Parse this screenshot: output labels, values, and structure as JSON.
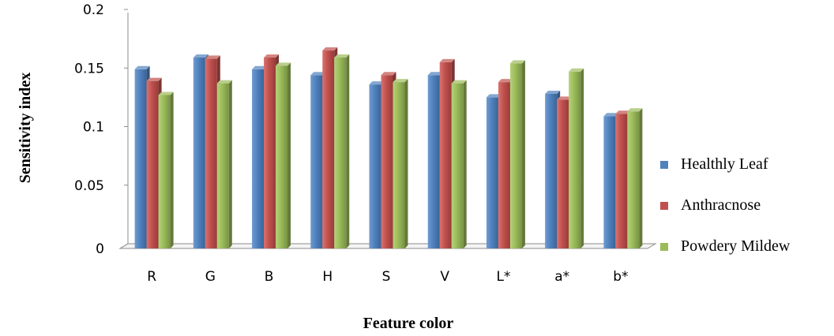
{
  "chart_data": {
    "type": "bar",
    "title": "",
    "xlabel": "Feature color",
    "ylabel": "Sensitivity index",
    "categories": [
      "R",
      "G",
      "B",
      "H",
      "S",
      "V",
      "L*",
      "a*",
      "b*"
    ],
    "series": [
      {
        "name": "Healthly Leaf",
        "color": "#4F81BD",
        "values": [
          0.153,
          0.163,
          0.153,
          0.148,
          0.14,
          0.148,
          0.129,
          0.132,
          0.113
        ]
      },
      {
        "name": "Anthracnose",
        "color": "#C0504D",
        "values": [
          0.143,
          0.162,
          0.163,
          0.169,
          0.148,
          0.159,
          0.142,
          0.127,
          0.115
        ]
      },
      {
        "name": "Powdery Mildew",
        "color": "#9BBB59",
        "values": [
          0.131,
          0.141,
          0.156,
          0.163,
          0.142,
          0.141,
          0.158,
          0.151,
          0.117
        ]
      }
    ],
    "ylim": [
      0,
      0.2
    ],
    "yticks": [
      {
        "value": 0,
        "label": "0"
      },
      {
        "value": 0.05,
        "label": "0.05"
      },
      {
        "value": 0.1,
        "label": "0.1"
      },
      {
        "value": 0.15,
        "label": "0.15"
      },
      {
        "value": 0.2,
        "label": "0.2"
      }
    ],
    "grid": false,
    "legend_position": "right",
    "style": "3d-bars"
  }
}
